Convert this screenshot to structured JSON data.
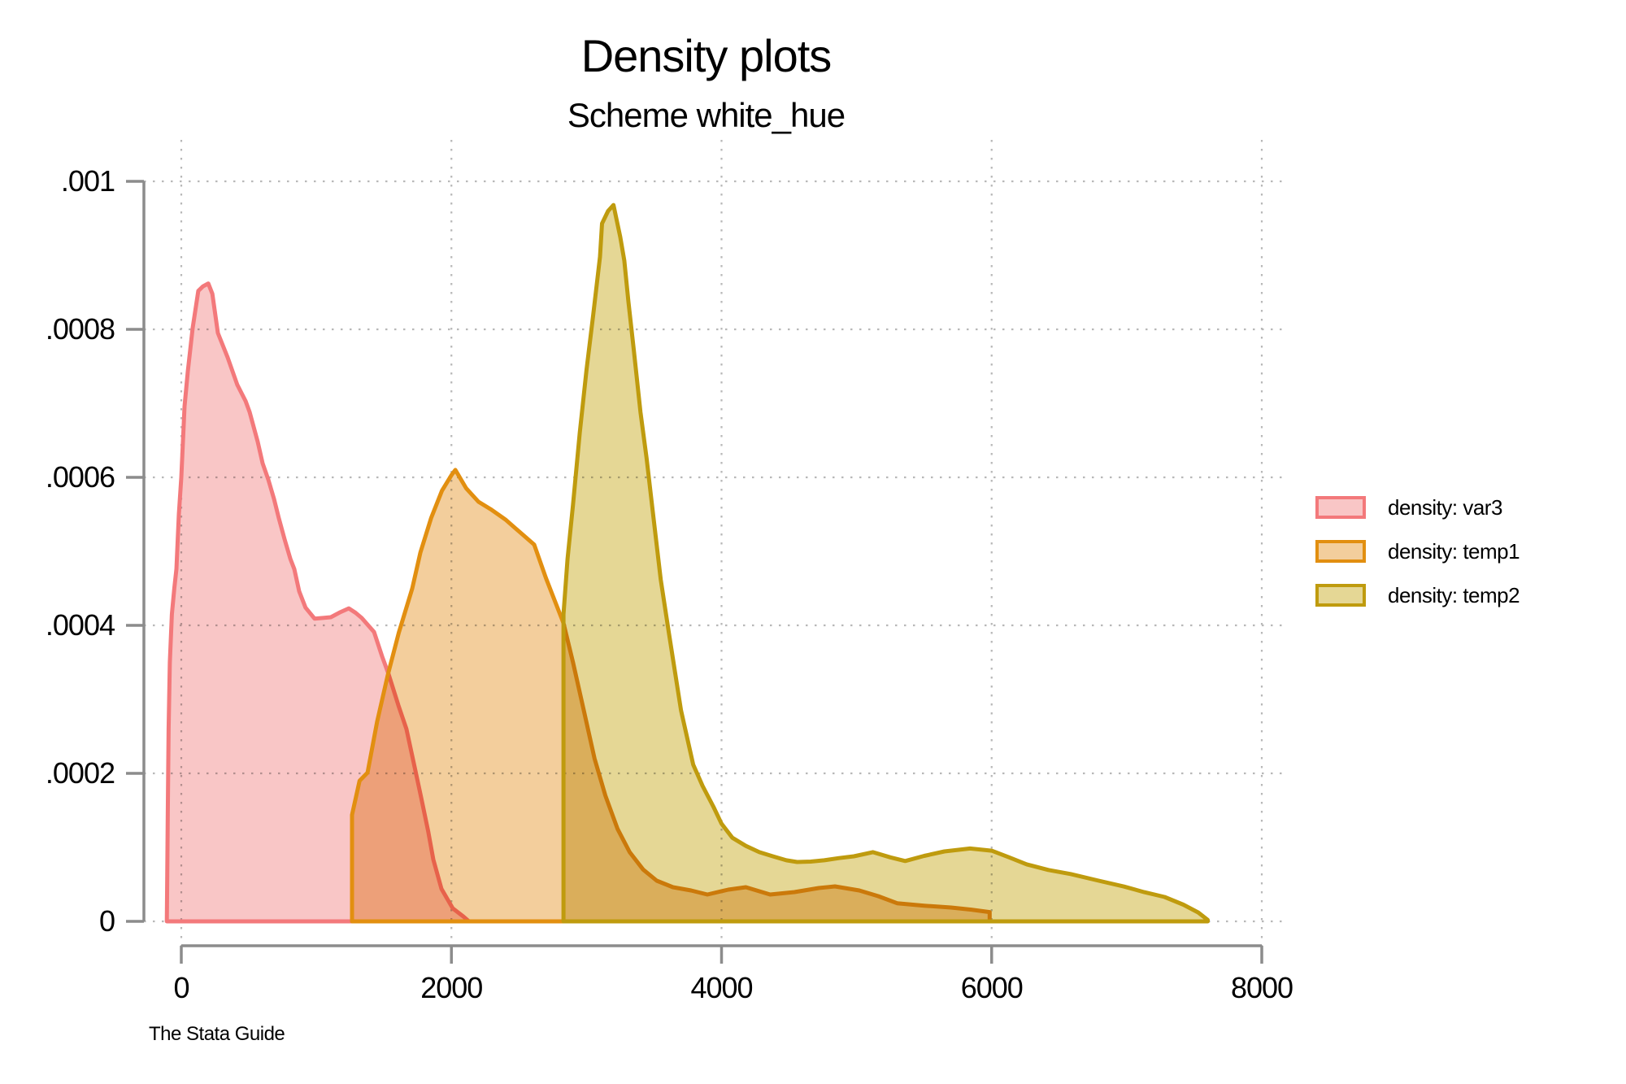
{
  "title": "Density plots",
  "subtitle": "Scheme white_hue",
  "caption": "The Stata Guide",
  "legend": {
    "position": "right",
    "items": [
      {
        "label": "density: var3"
      },
      {
        "label": "density: temp1"
      },
      {
        "label": "density: temp2"
      }
    ]
  },
  "chart_data": {
    "type": "area",
    "title": "Density plots",
    "subtitle": "Scheme white_hue",
    "xlabel": "",
    "ylabel": "",
    "xlim": [
      0,
      8000
    ],
    "ylim": [
      0,
      0.001
    ],
    "grid": "dotted-both-axes",
    "legend_position": "right-middle",
    "axis_color": "#8c8c8c",
    "grid_color": "#b8b8b8",
    "text_color": "#000000",
    "background_color": "#ffffff",
    "x_ticks": [
      {
        "label": "0",
        "value": 0
      },
      {
        "label": "2000",
        "value": 2000
      },
      {
        "label": "4000",
        "value": 4000
      },
      {
        "label": "6000",
        "value": 6000
      },
      {
        "label": "8000",
        "value": 8000
      }
    ],
    "y_ticks": [
      {
        "label": "0",
        "value": 0
      },
      {
        "label": ".0002",
        "value": 0.0002
      },
      {
        "label": ".0004",
        "value": 0.0004
      },
      {
        "label": ".0006",
        "value": 0.0006
      },
      {
        "label": ".0008",
        "value": 0.0008
      },
      {
        "label": ".001",
        "value": 0.001
      }
    ],
    "series": [
      {
        "name": "density: var3",
        "line_color": "#f3797b",
        "fill_color": "#f9c6c6",
        "points": [
          [
            -107,
            0
          ],
          [
            -104,
            6e-05
          ],
          [
            -100,
            0.00015
          ],
          [
            -94,
            0.00026
          ],
          [
            -85,
            0.00035
          ],
          [
            -70,
            0.000415
          ],
          [
            -52,
            0.00045
          ],
          [
            -36,
            0.000476
          ],
          [
            -18,
            0.00055
          ],
          [
            0,
            0.0006
          ],
          [
            24,
            0.000696
          ],
          [
            48,
            0.000743
          ],
          [
            84,
            0.000802
          ],
          [
            126,
            0.000852
          ],
          [
            160,
            0.000858
          ],
          [
            200,
            0.000862
          ],
          [
            230,
            0.000848
          ],
          [
            271,
            0.000795
          ],
          [
            343,
            0.000762
          ],
          [
            415,
            0.000725
          ],
          [
            476,
            0.000703
          ],
          [
            506,
            0.000688
          ],
          [
            566,
            0.000648
          ],
          [
            602,
            0.000619
          ],
          [
            644,
            0.000597
          ],
          [
            686,
            0.000571
          ],
          [
            722,
            0.000545
          ],
          [
            765,
            0.000516
          ],
          [
            807,
            0.00049
          ],
          [
            837,
            0.000476
          ],
          [
            873,
            0.000446
          ],
          [
            920,
            0.000424
          ],
          [
            987,
            0.000409
          ],
          [
            1050,
            0.00041
          ],
          [
            1107,
            0.000411
          ],
          [
            1180,
            0.000418
          ],
          [
            1240,
            0.000423
          ],
          [
            1290,
            0.000417
          ],
          [
            1336,
            0.00041
          ],
          [
            1427,
            0.000391
          ],
          [
            1487,
            0.000358
          ],
          [
            1535,
            0.000334
          ],
          [
            1607,
            0.000292
          ],
          [
            1667,
            0.00026
          ],
          [
            1727,
            0.000209
          ],
          [
            1775,
            0.000168
          ],
          [
            1829,
            0.000121
          ],
          [
            1866,
            8.35e-05
          ],
          [
            1926,
            4.4e-05
          ],
          [
            2010,
            1.76e-05
          ],
          [
            2088,
            6.6e-06
          ],
          [
            2130,
            0
          ]
        ]
      },
      {
        "name": "density: temp1",
        "line_color": "#e28f10",
        "fill_color": "#f3ce9c",
        "points": [
          [
            1264,
            0
          ],
          [
            1264,
            0.000144
          ],
          [
            1320,
            0.00019
          ],
          [
            1379,
            0.000201
          ],
          [
            1450,
            0.00027
          ],
          [
            1529,
            0.000333
          ],
          [
            1610,
            0.00039
          ],
          [
            1710,
            0.00045
          ],
          [
            1770,
            0.000498
          ],
          [
            1850,
            0.000545
          ],
          [
            1930,
            0.000582
          ],
          [
            2000,
            0.000603
          ],
          [
            2029,
            0.00061
          ],
          [
            2110,
            0.000585
          ],
          [
            2200,
            0.000567
          ],
          [
            2290,
            0.000557
          ],
          [
            2400,
            0.000543
          ],
          [
            2500,
            0.000527
          ],
          [
            2613,
            0.000509
          ],
          [
            2700,
            0.000464
          ],
          [
            2830,
            0.000403
          ],
          [
            2900,
            0.00035
          ],
          [
            2980,
            0.000285
          ],
          [
            3060,
            0.00022
          ],
          [
            3140,
            0.00017
          ],
          [
            3230,
            0.000125
          ],
          [
            3320,
            9.35e-05
          ],
          [
            3420,
            7e-05
          ],
          [
            3520,
            5.5e-05
          ],
          [
            3640,
            4.62e-05
          ],
          [
            3774,
            4.18e-05
          ],
          [
            3895,
            3.63e-05
          ],
          [
            4050,
            4.29e-05
          ],
          [
            4180,
            4.62e-05
          ],
          [
            4360,
            3.63e-05
          ],
          [
            4540,
            3.96e-05
          ],
          [
            4720,
            4.51e-05
          ],
          [
            4840,
            4.73e-05
          ],
          [
            5020,
            4.18e-05
          ],
          [
            5160,
            3.41e-05
          ],
          [
            5300,
            2.45e-05
          ],
          [
            5500,
            2.12e-05
          ],
          [
            5700,
            1.87e-05
          ],
          [
            5850,
            1.58e-05
          ],
          [
            5985,
            1.25e-05
          ],
          [
            5985,
            0
          ]
        ]
      },
      {
        "name": "density: temp2",
        "line_color": "#bf9b0e",
        "fill_color": "#e5d795",
        "points": [
          [
            2830,
            0
          ],
          [
            2830,
            0.000415
          ],
          [
            2860,
            0.00049
          ],
          [
            2900,
            0.000563
          ],
          [
            2950,
            0.00066
          ],
          [
            3000,
            0.000745
          ],
          [
            3050,
            0.00082
          ],
          [
            3100,
            0.000898
          ],
          [
            3115,
            0.000943
          ],
          [
            3160,
            0.00096
          ],
          [
            3200,
            0.000968
          ],
          [
            3250,
            0.000925
          ],
          [
            3280,
            0.000893
          ],
          [
            3310,
            0.000838
          ],
          [
            3350,
            0.000773
          ],
          [
            3400,
            0.000688
          ],
          [
            3445,
            0.000626
          ],
          [
            3490,
            0.000555
          ],
          [
            3550,
            0.000462
          ],
          [
            3610,
            0.00039
          ],
          [
            3700,
            0.000285
          ],
          [
            3790,
            0.000212
          ],
          [
            3860,
            0.000183
          ],
          [
            3940,
            0.000155
          ],
          [
            4000,
            0.000132
          ],
          [
            4080,
            0.000113
          ],
          [
            4180,
            0.000102
          ],
          [
            4280,
            9.35e-05
          ],
          [
            4380,
            8.79e-05
          ],
          [
            4480,
            8.25e-05
          ],
          [
            4560,
            8.02e-05
          ],
          [
            4660,
            8.08e-05
          ],
          [
            4760,
            8.25e-05
          ],
          [
            4870,
            8.55e-05
          ],
          [
            4980,
            8.79e-05
          ],
          [
            5120,
            9.35e-05
          ],
          [
            5250,
            8.65e-05
          ],
          [
            5360,
            8.15e-05
          ],
          [
            5500,
            8.85e-05
          ],
          [
            5650,
            9.45e-05
          ],
          [
            5840,
            9.85e-05
          ],
          [
            6000,
            9.55e-05
          ],
          [
            6130,
            8.65e-05
          ],
          [
            6260,
            7.7e-05
          ],
          [
            6420,
            6.95e-05
          ],
          [
            6585,
            6.4e-05
          ],
          [
            6780,
            5.55e-05
          ],
          [
            6980,
            4.7e-05
          ],
          [
            7130,
            3.95e-05
          ],
          [
            7280,
            3.3e-05
          ],
          [
            7420,
            2.25e-05
          ],
          [
            7530,
            1.2e-05
          ],
          [
            7600,
            2e-06
          ],
          [
            7600,
            0
          ]
        ]
      }
    ]
  }
}
